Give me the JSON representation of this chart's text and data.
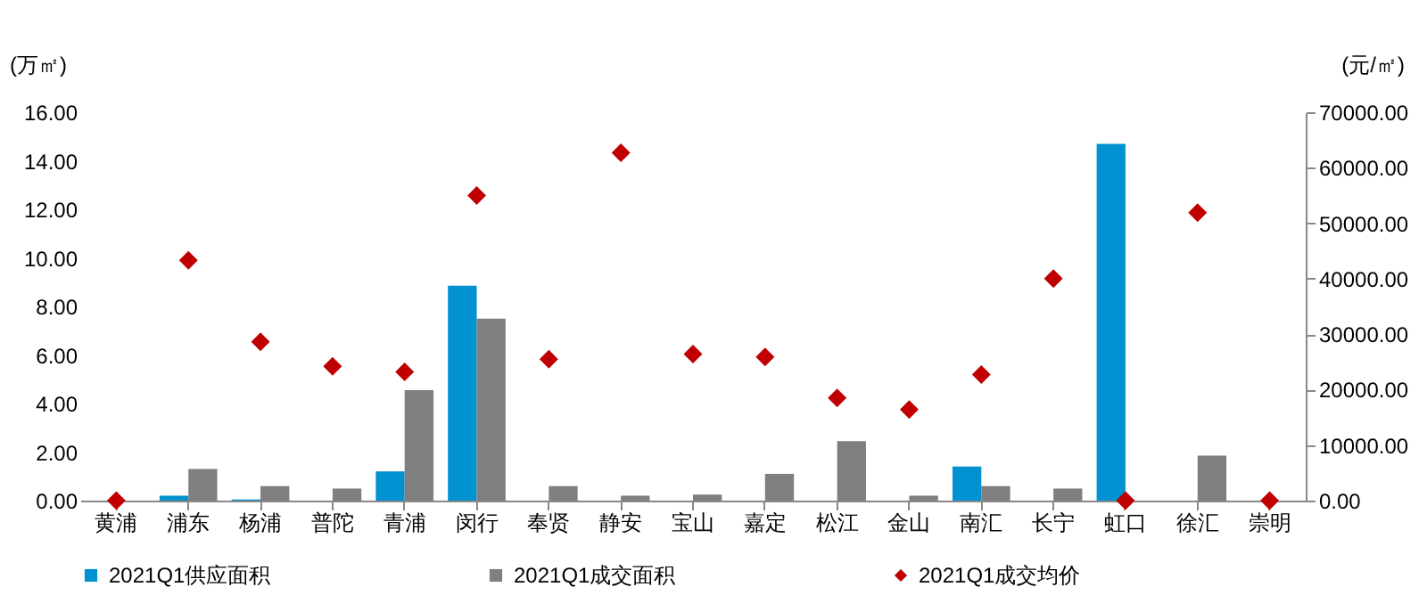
{
  "chart_data": {
    "type": "bar",
    "ylabel": "(万㎡)",
    "y2label": "(元/㎡)",
    "categories": [
      "黄浦",
      "浦东",
      "杨浦",
      "普陀",
      "青浦",
      "闵行",
      "奉贤",
      "静安",
      "宝山",
      "嘉定",
      "松江",
      "金山",
      "南汇",
      "长宁",
      "虹口",
      "徐汇",
      "崇明"
    ],
    "series": [
      {
        "name": "2021Q1供应面积",
        "type": "bar",
        "color": "#0091d0",
        "values": [
          0,
          0.2,
          0.05,
          0,
          1.2,
          8.85,
          0,
          0,
          0,
          0,
          0,
          0,
          1.4,
          0,
          14.7,
          0,
          0
        ]
      },
      {
        "name": "2021Q1成交面积",
        "type": "bar",
        "color": "#7f7f7f",
        "values": [
          0,
          1.3,
          0.6,
          0.5,
          4.55,
          7.5,
          0.6,
          0.2,
          0.25,
          1.1,
          2.45,
          0.2,
          0.6,
          0.5,
          0,
          1.85,
          0
        ]
      },
      {
        "name": "2021Q1成交均价",
        "type": "scatter",
        "axis": "y2",
        "marker": "diamond",
        "color": "#c00000",
        "values": [
          0,
          43300,
          28600,
          24200,
          23200,
          55000,
          25500,
          62700,
          26400,
          25900,
          18500,
          16400,
          22700,
          40000,
          0,
          51900,
          0
        ]
      }
    ],
    "ylim": [
      0,
      16
    ],
    "yticks": [
      {
        "value": 0,
        "label": "0.00"
      },
      {
        "value": 2,
        "label": "2.00"
      },
      {
        "value": 4,
        "label": "4.00"
      },
      {
        "value": 6,
        "label": "6.00"
      },
      {
        "value": 8,
        "label": "8.00"
      },
      {
        "value": 10,
        "label": "10.00"
      },
      {
        "value": 12,
        "label": "12.00"
      },
      {
        "value": 14,
        "label": "14.00"
      },
      {
        "value": 16,
        "label": "16.00"
      }
    ],
    "y2lim": [
      0,
      70000
    ],
    "y2ticks": [
      {
        "value": 0,
        "label": "0.00"
      },
      {
        "value": 10000,
        "label": "10000.00"
      },
      {
        "value": 20000,
        "label": "20000.00"
      },
      {
        "value": 30000,
        "label": "30000.00"
      },
      {
        "value": 40000,
        "label": "40000.00"
      },
      {
        "value": 50000,
        "label": "50000.00"
      },
      {
        "value": 60000,
        "label": "60000.00"
      },
      {
        "value": 70000,
        "label": "70000.00"
      }
    ],
    "legend": "bottom"
  }
}
